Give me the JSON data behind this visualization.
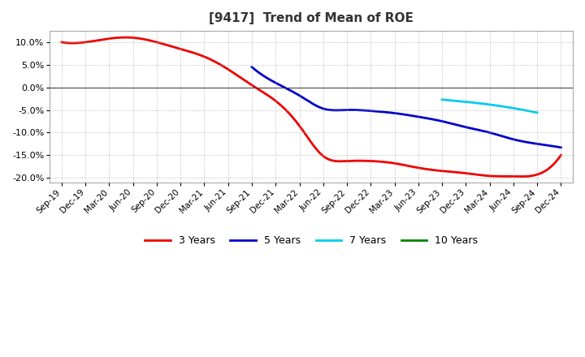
{
  "title": "[9417]  Trend of Mean of ROE",
  "title_fontsize": 11,
  "background_color": "#ffffff",
  "grid_color": "#aaaaaa",
  "ylim": [
    -0.21,
    0.125
  ],
  "yticks": [
    -0.2,
    -0.15,
    -0.1,
    -0.05,
    0.0,
    0.05,
    0.1
  ],
  "series": {
    "3 Years": {
      "color": "#ee0000",
      "x": [
        0,
        1,
        2,
        3,
        4,
        5,
        6,
        7,
        8,
        9,
        10,
        11,
        12,
        13,
        14,
        15,
        16,
        17,
        18,
        19,
        20,
        21
      ],
      "y": [
        0.1,
        0.1,
        0.108,
        0.11,
        0.1,
        0.085,
        0.068,
        0.04,
        0.005,
        -0.03,
        -0.085,
        -0.152,
        -0.163,
        -0.163,
        -0.168,
        -0.178,
        -0.185,
        -0.19,
        -0.196,
        -0.197,
        -0.193,
        -0.15
      ]
    },
    "5 Years": {
      "color": "#0000cc",
      "x": [
        8,
        9,
        10,
        11,
        12,
        13,
        14,
        15,
        16,
        17,
        18,
        19,
        20,
        21
      ],
      "y": [
        0.045,
        0.01,
        -0.018,
        -0.047,
        -0.05,
        -0.052,
        -0.057,
        -0.065,
        -0.075,
        -0.088,
        -0.1,
        -0.115,
        -0.125,
        -0.133
      ]
    },
    "7 Years": {
      "color": "#00ccee",
      "x": [
        16,
        17,
        18,
        19,
        20
      ],
      "y": [
        -0.027,
        -0.032,
        -0.038,
        -0.046,
        -0.056
      ]
    },
    "10 Years": {
      "color": "#008000",
      "x": [],
      "y": []
    }
  },
  "xtick_labels": [
    "Sep-19",
    "Dec-19",
    "Mar-20",
    "Jun-20",
    "Sep-20",
    "Dec-20",
    "Mar-21",
    "Jun-21",
    "Sep-21",
    "Dec-21",
    "Mar-22",
    "Jun-22",
    "Sep-22",
    "Dec-22",
    "Mar-23",
    "Jun-23",
    "Sep-23",
    "Dec-23",
    "Mar-24",
    "Jun-24",
    "Sep-24",
    "Dec-24"
  ],
  "legend_entries": [
    "3 Years",
    "5 Years",
    "7 Years",
    "10 Years"
  ],
  "legend_colors": [
    "#ee0000",
    "#0000cc",
    "#00ccee",
    "#008000"
  ]
}
